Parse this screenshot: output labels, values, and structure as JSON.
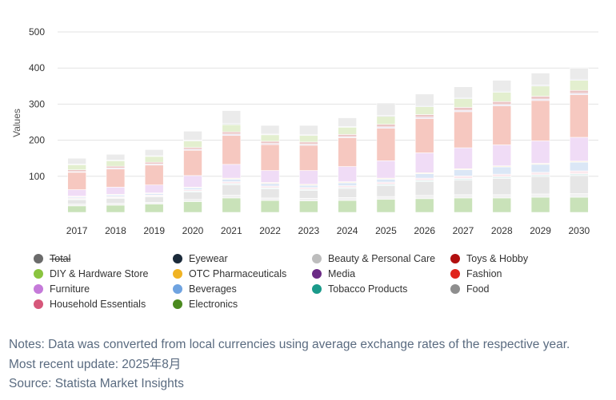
{
  "chart_data": {
    "type": "bar",
    "stacked": true,
    "ylabel": "Values",
    "ylim": [
      0,
      500
    ],
    "yticks": [
      100,
      200,
      300,
      400,
      500
    ],
    "categories": [
      "2017",
      "2018",
      "2019",
      "2020",
      "2021",
      "2022",
      "2023",
      "2024",
      "2025",
      "2026",
      "2027",
      "2028",
      "2029",
      "2030"
    ],
    "series": [
      {
        "name": "Food",
        "color": "#c9e2b9",
        "values": [
          18,
          20,
          23,
          30,
          40,
          33,
          32,
          33,
          36,
          38,
          40,
          40,
          42,
          42
        ]
      },
      {
        "name": "Electronics",
        "color": "#f1f1f1",
        "values": [
          5,
          5,
          5,
          6,
          8,
          7,
          7,
          8,
          8,
          9,
          9,
          9,
          9,
          10
        ]
      },
      {
        "name": "Beauty & Personal Care",
        "color": "#e6e6e6",
        "values": [
          12,
          14,
          15,
          20,
          28,
          25,
          22,
          25,
          30,
          38,
          40,
          45,
          48,
          50
        ]
      },
      {
        "name": "Tobacco Products",
        "color": "#e4f2f1",
        "values": [
          2,
          2,
          2,
          3,
          4,
          3,
          3,
          3,
          4,
          4,
          5,
          5,
          5,
          5
        ]
      },
      {
        "name": "Household Essentials",
        "color": "#fbe9ee",
        "values": [
          3,
          3,
          3,
          4,
          5,
          5,
          5,
          5,
          6,
          6,
          7,
          7,
          7,
          8
        ]
      },
      {
        "name": "Beverages",
        "color": "#dbe7f6",
        "values": [
          3,
          4,
          4,
          5,
          7,
          7,
          6,
          8,
          8,
          12,
          17,
          20,
          22,
          24
        ]
      },
      {
        "name": "OTC Pharmaceuticals",
        "color": "#fbf2de",
        "values": [
          2,
          2,
          2,
          2,
          3,
          3,
          3,
          3,
          3,
          3,
          3,
          3,
          3,
          3
        ]
      },
      {
        "name": "Furniture",
        "color": "#f0dcf6",
        "values": [
          18,
          20,
          22,
          32,
          38,
          33,
          38,
          42,
          48,
          55,
          58,
          58,
          62,
          66
        ]
      },
      {
        "name": "Fashion",
        "color": "#f6c8c0",
        "values": [
          48,
          50,
          55,
          70,
          80,
          72,
          70,
          80,
          90,
          95,
          100,
          108,
          112,
          118
        ]
      },
      {
        "name": "Media",
        "color": "#e8e0ee",
        "values": [
          2,
          3,
          3,
          3,
          4,
          3,
          3,
          3,
          4,
          4,
          4,
          4,
          4,
          4
        ]
      },
      {
        "name": "Toys & Hobby",
        "color": "#ebc5c5",
        "values": [
          5,
          5,
          5,
          5,
          6,
          6,
          6,
          6,
          7,
          7,
          8,
          8,
          8,
          8
        ]
      },
      {
        "name": "DIY & Hardware Store",
        "color": "#e3efcf",
        "values": [
          14,
          15,
          16,
          18,
          20,
          18,
          18,
          20,
          22,
          22,
          24,
          26,
          28,
          28
        ]
      },
      {
        "name": "Eyewear",
        "color": "#dfe2e7",
        "values": [
          2,
          2,
          2,
          2,
          3,
          2,
          2,
          2,
          3,
          3,
          3,
          3,
          3,
          3
        ]
      },
      {
        "name": "Total",
        "color": "#ebebeb",
        "values": [
          16,
          16,
          17,
          25,
          36,
          24,
          26,
          24,
          34,
          32,
          30,
          30,
          33,
          31
        ]
      }
    ]
  },
  "legend": [
    {
      "name": "Total",
      "color": "#6b6b6b",
      "disabled": true
    },
    {
      "name": "Eyewear",
      "color": "#1b2a3a",
      "disabled": false
    },
    {
      "name": "Beauty & Personal Care",
      "color": "#bdbdbd",
      "disabled": false
    },
    {
      "name": "Toys & Hobby",
      "color": "#b10f0f",
      "disabled": false
    },
    {
      "name": "DIY & Hardware Store",
      "color": "#8ac43f",
      "disabled": false
    },
    {
      "name": "OTC Pharmaceuticals",
      "color": "#f0b323",
      "disabled": false
    },
    {
      "name": "Media",
      "color": "#6b2b85",
      "disabled": false
    },
    {
      "name": "Fashion",
      "color": "#e0241b",
      "disabled": false
    },
    {
      "name": "Furniture",
      "color": "#c57ad9",
      "disabled": false
    },
    {
      "name": "Beverages",
      "color": "#6fa3e0",
      "disabled": false
    },
    {
      "name": "Tobacco Products",
      "color": "#1a9a8a",
      "disabled": false
    },
    {
      "name": "Food",
      "color": "#8e8e8e",
      "disabled": false
    },
    {
      "name": "Household Essentials",
      "color": "#d6577a",
      "disabled": false
    },
    {
      "name": "Electronics",
      "color": "#4b8a1f",
      "disabled": false
    }
  ],
  "notes": {
    "line1": "Notes: Data was converted from local currencies using average exchange rates of the respective year.",
    "line2": "Most recent update: 2025年8月",
    "line3": "Source: Statista Market Insights"
  }
}
